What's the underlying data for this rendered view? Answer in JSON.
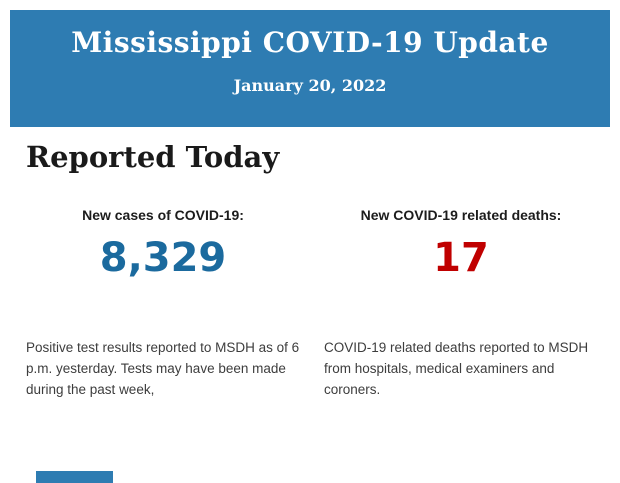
{
  "colors": {
    "banner": "#2e7cb2",
    "banner_text": "#ffffff",
    "heading_text": "#1a1a1a",
    "cases_value": "#1b6a9e",
    "deaths_value": "#c00000",
    "body_text": "#3d3d3d",
    "page_bg": "#ffffff"
  },
  "header": {
    "title": "Mississippi COVID-19 Update",
    "date": "January 20, 2022"
  },
  "main": {
    "section_title": "Reported Today",
    "stats": [
      {
        "label": "New cases of COVID-19:",
        "value": "8,329",
        "description": "Positive test results reported to MSDH as of 6 p.m. yesterday. Tests may have been made during the past week,"
      },
      {
        "label": "New COVID-19 related deaths:",
        "value": "17",
        "description": "COVID-19 related deaths reported to MSDH from hospitals, medical examiners and coroners."
      }
    ]
  }
}
